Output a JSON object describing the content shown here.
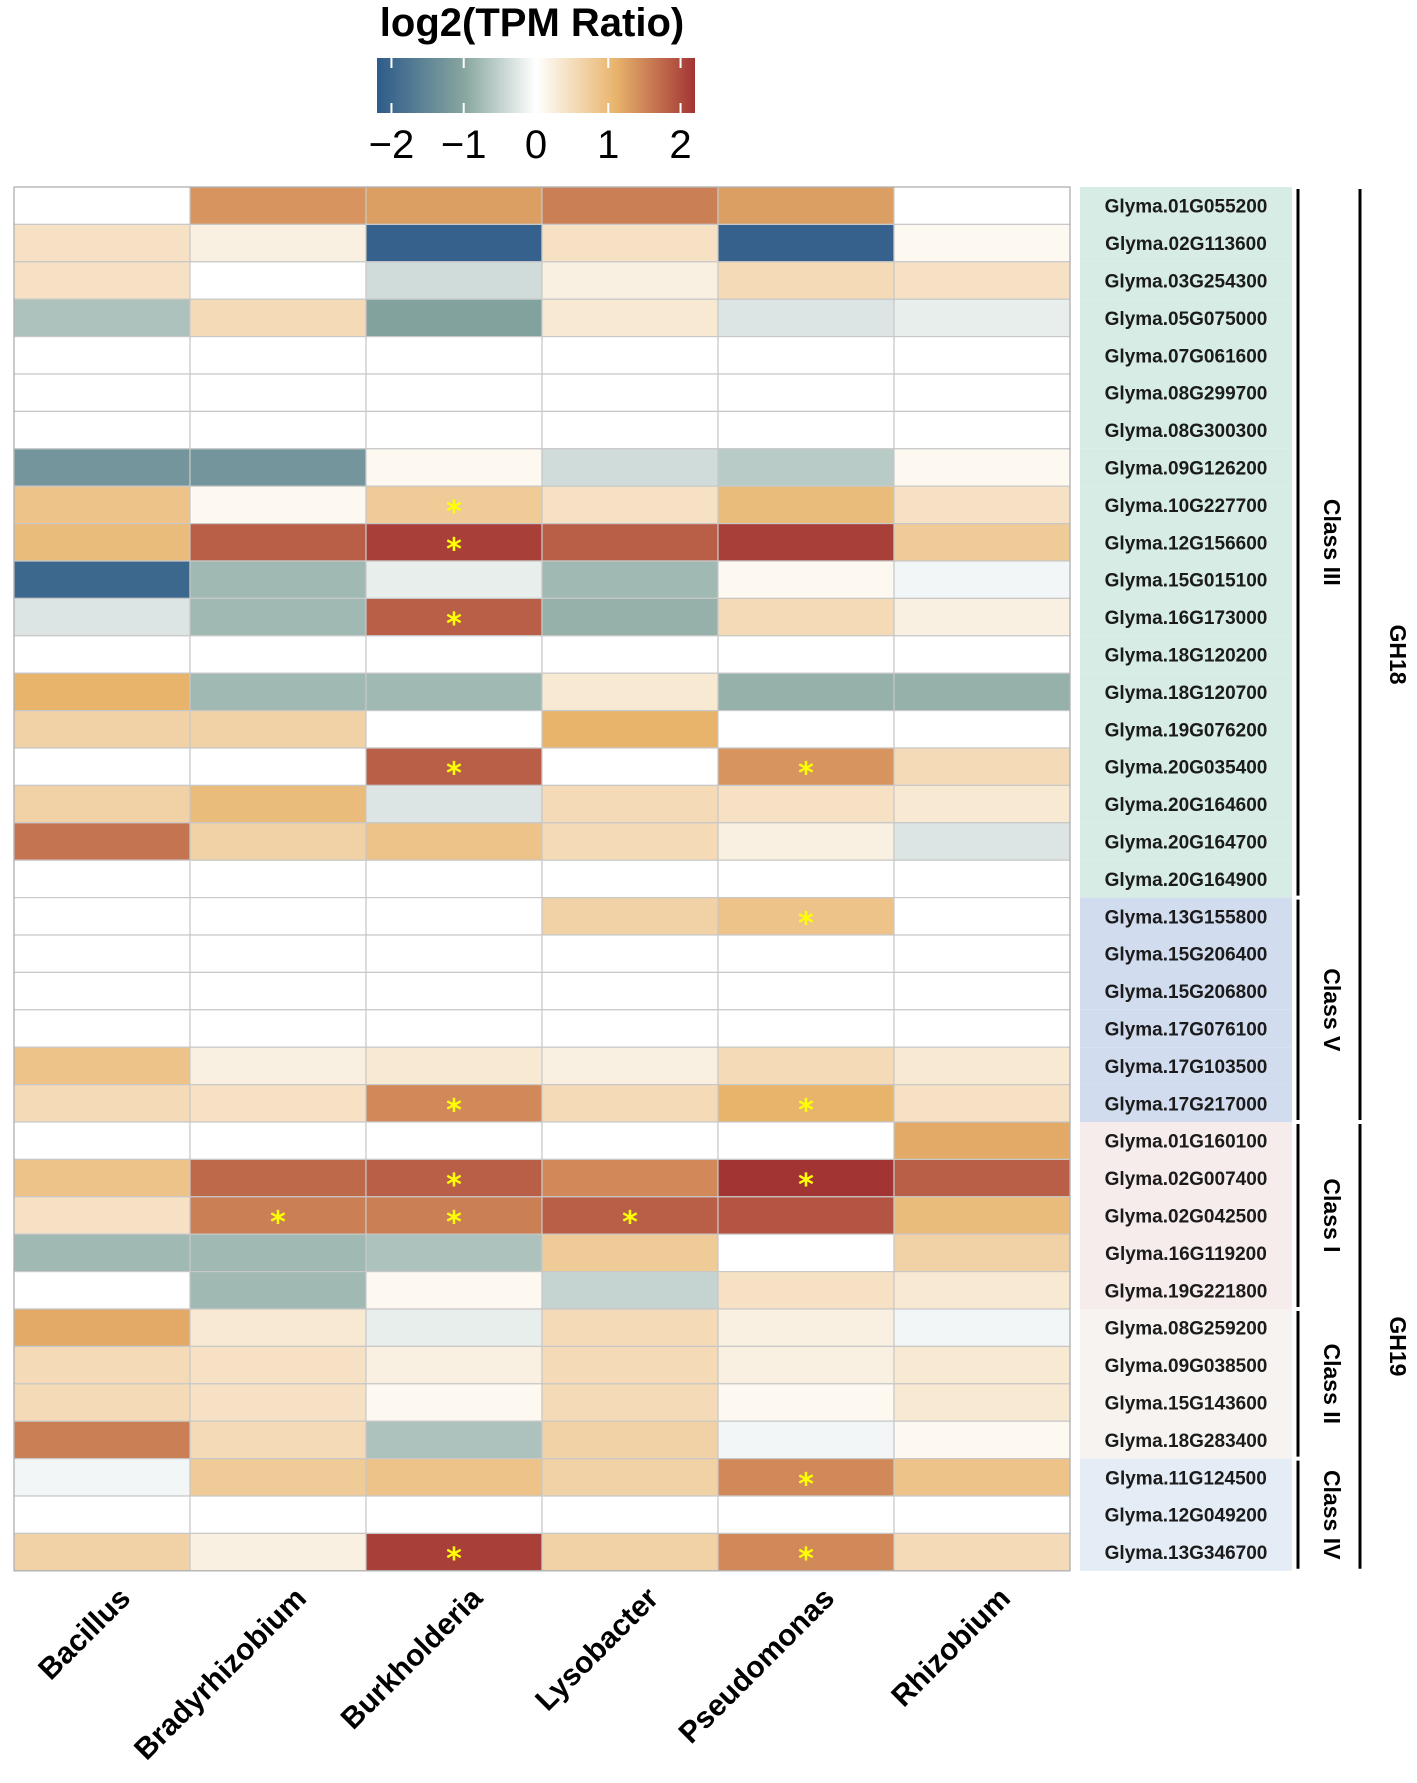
{
  "chart_data": {
    "type": "heatmap",
    "legend": {
      "title": "log2(TPM Ratio)",
      "ticks": [
        -2,
        -1,
        0,
        1,
        2
      ],
      "tick_labels": [
        "−2",
        "−1",
        "0",
        "1",
        "2"
      ],
      "range": [
        -2.2,
        2.2
      ]
    },
    "columns": [
      "Bacillus",
      "Bradyrhizobium",
      "Burkholderia",
      "Lysobacter",
      "Pseudomonas",
      "Rhizobium"
    ],
    "rows": [
      "Glyma.01G055200",
      "Glyma.02G113600",
      "Glyma.03G254300",
      "Glyma.05G075000",
      "Glyma.07G061600",
      "Glyma.08G299700",
      "Glyma.08G300300",
      "Glyma.09G126200",
      "Glyma.10G227700",
      "Glyma.12G156600",
      "Glyma.15G015100",
      "Glyma.16G173000",
      "Glyma.18G120200",
      "Glyma.18G120700",
      "Glyma.19G076200",
      "Glyma.20G035400",
      "Glyma.20G164600",
      "Glyma.20G164700",
      "Glyma.20G164900",
      "Glyma.13G155800",
      "Glyma.15G206400",
      "Glyma.15G206800",
      "Glyma.17G076100",
      "Glyma.17G103500",
      "Glyma.17G217000",
      "Glyma.01G160100",
      "Glyma.02G007400",
      "Glyma.02G042500",
      "Glyma.16G119200",
      "Glyma.19G221800",
      "Glyma.08G259200",
      "Glyma.09G038500",
      "Glyma.15G143600",
      "Glyma.18G283400",
      "Glyma.11G124500",
      "Glyma.12G049200",
      "Glyma.13G346700"
    ],
    "values": [
      [
        0,
        1.3,
        1.2,
        1.5,
        1.2,
        0
      ],
      [
        0.4,
        0.2,
        -2.1,
        0.4,
        -2.1,
        0.1
      ],
      [
        0.4,
        0,
        -0.4,
        0.2,
        0.5,
        0.4
      ],
      [
        -0.7,
        0.5,
        -1.1,
        0.3,
        -0.3,
        -0.2
      ],
      [
        0,
        0,
        0,
        0,
        0,
        0
      ],
      [
        0,
        0,
        0,
        0,
        0,
        0
      ],
      [
        0,
        0,
        0,
        0,
        0,
        0
      ],
      [
        -1.3,
        -1.3,
        0.1,
        -0.4,
        -0.6,
        0.1
      ],
      [
        0.8,
        0.1,
        0.7,
        0.4,
        0.9,
        0.4
      ],
      [
        0.9,
        1.8,
        2.1,
        1.8,
        2.1,
        0.7
      ],
      [
        -2.0,
        -0.8,
        -0.2,
        -0.8,
        0.1,
        -0.1
      ],
      [
        -0.3,
        -0.8,
        1.8,
        -0.9,
        0.5,
        0.2
      ],
      [
        0,
        0,
        0,
        0,
        0,
        0
      ],
      [
        1.0,
        -0.8,
        -0.8,
        0.3,
        -0.9,
        -0.9
      ],
      [
        0.6,
        0.6,
        0,
        1.0,
        0,
        0
      ],
      [
        0,
        0,
        1.8,
        0,
        1.3,
        0.5
      ],
      [
        0.6,
        0.9,
        -0.3,
        0.5,
        0.4,
        0.3
      ],
      [
        1.6,
        0.6,
        0.8,
        0.5,
        0.2,
        -0.3
      ],
      [
        0,
        0,
        0,
        0,
        0,
        0
      ],
      [
        0,
        0,
        0,
        0.6,
        0.8,
        0
      ],
      [
        0,
        0,
        0,
        0,
        0,
        0
      ],
      [
        0,
        0,
        0,
        0,
        0,
        0
      ],
      [
        0,
        0,
        0,
        0,
        0,
        0
      ],
      [
        0.8,
        0.2,
        0.3,
        0.2,
        0.5,
        0.3
      ],
      [
        0.5,
        0.4,
        1.4,
        0.5,
        1.0,
        0.4
      ],
      [
        0,
        0,
        0,
        0,
        0,
        1.1
      ],
      [
        0.8,
        1.7,
        1.8,
        1.4,
        2.2,
        1.8
      ],
      [
        0.4,
        1.5,
        1.5,
        1.8,
        1.9,
        0.9
      ],
      [
        -0.8,
        -0.8,
        -0.7,
        0.7,
        0,
        0.6
      ],
      [
        0,
        -0.8,
        0.1,
        -0.5,
        0.4,
        0.3
      ],
      [
        1.1,
        0.3,
        -0.2,
        0.5,
        0.2,
        -0.1
      ],
      [
        0.5,
        0.4,
        0.2,
        0.5,
        0.2,
        0.3
      ],
      [
        0.5,
        0.4,
        0.1,
        0.5,
        0.1,
        0.3
      ],
      [
        1.5,
        0.5,
        -0.7,
        0.6,
        -0.1,
        0.1
      ],
      [
        -0.1,
        0.7,
        0.8,
        0.6,
        1.4,
        0.8
      ],
      [
        0,
        0,
        0,
        0,
        0,
        0
      ],
      [
        0.6,
        0.2,
        2.1,
        0.6,
        1.4,
        0.5
      ]
    ],
    "significant": [
      [
        8,
        2
      ],
      [
        9,
        2
      ],
      [
        11,
        2
      ],
      [
        15,
        2
      ],
      [
        15,
        4
      ],
      [
        19,
        4
      ],
      [
        24,
        2
      ],
      [
        24,
        4
      ],
      [
        26,
        2
      ],
      [
        26,
        4
      ],
      [
        27,
        1
      ],
      [
        27,
        2
      ],
      [
        27,
        3
      ],
      [
        34,
        4
      ],
      [
        36,
        2
      ],
      [
        36,
        4
      ]
    ],
    "significance_marker": "*",
    "row_label_bg": {
      "Class III": "#d6ece5",
      "Class V": "#d2dcef",
      "Class I": "#f6ecec",
      "Class II": "#f7f3f0",
      "Class IV": "#e4ecf6"
    },
    "row_groups": [
      {
        "label": "Class III",
        "start": 0,
        "end": 18
      },
      {
        "label": "Class V",
        "start": 19,
        "end": 24
      },
      {
        "label": "Class I",
        "start": 25,
        "end": 29
      },
      {
        "label": "Class II",
        "start": 30,
        "end": 33
      },
      {
        "label": "Class IV",
        "start": 34,
        "end": 36
      }
    ],
    "families": [
      {
        "label": "GH18",
        "start": 0,
        "end": 24
      },
      {
        "label": "GH19",
        "start": 25,
        "end": 36
      }
    ],
    "colors": [
      "#2d5b8a",
      "#8aa8a0",
      "#ffffff",
      "#e8b46c",
      "#a23434"
    ]
  }
}
